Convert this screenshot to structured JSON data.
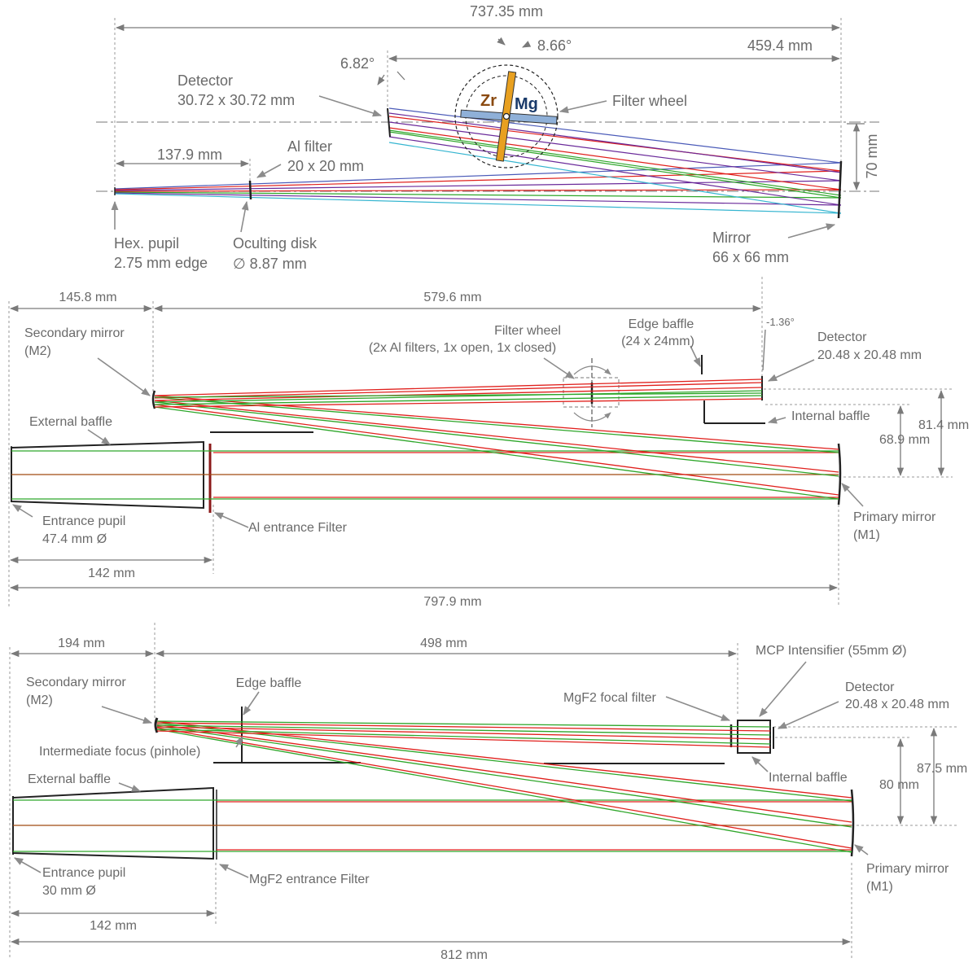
{
  "panel1": {
    "dimensions": {
      "total_length": "737.35 mm",
      "angle_filter": "8.66°",
      "detector_to_mirror": "459.4 mm",
      "angle_detector": "6.82°",
      "pupil_to_filter": "137.9 mm",
      "height": "70 mm"
    },
    "labels": {
      "detector_line1": "Detector",
      "detector_line2": "30.72 x 30.72 mm",
      "filter_wheel": "Filter wheel",
      "al_filter_line1": "Al filter",
      "al_filter_line2": "20 x 20 mm",
      "pupil_line1": "Hex. pupil",
      "pupil_line2": "2.75 mm edge",
      "disk_line1": "Oculting disk",
      "disk_line2": "∅ 8.87 mm",
      "mirror_line1": "Mirror",
      "mirror_line2": "66 x 66 mm",
      "zr": "Zr",
      "mg": "Mg"
    }
  },
  "panel2": {
    "dimensions": {
      "front": "145.8 mm",
      "m2_to_detector": "579.6 mm",
      "angle": "-1.36°",
      "height_outer": "81.4 mm",
      "height_inner": "68.9 mm",
      "filter_distance": "142 mm",
      "total_length": "797.9 mm"
    },
    "labels": {
      "secondary_line1": "Secondary mirror",
      "secondary_line2": "(M2)",
      "filter_wheel_line1": "Filter wheel",
      "filter_wheel_line2": "(2x Al filters, 1x open, 1x closed)",
      "edge_baffle_line1": "Edge baffle",
      "edge_baffle_line2": "(24 x 24mm)",
      "detector_line1": "Detector",
      "detector_line2": "20.48 x 20.48 mm",
      "external_baffle": "External baffle",
      "internal_baffle": "Internal baffle",
      "entrance_pupil_line1": "Entrance pupil",
      "entrance_pupil_line2": "47.4 mm Ø",
      "entrance_filter": "Al entrance Filter",
      "primary_line1": "Primary mirror",
      "primary_line2": "(M1)"
    }
  },
  "panel3": {
    "dimensions": {
      "front": "194 mm",
      "m2_to_detector": "498 mm",
      "height_outer": "87.5 mm",
      "height_inner": "80 mm",
      "filter_distance": "142 mm",
      "total_length": "812 mm"
    },
    "labels": {
      "secondary_line1": "Secondary mirror",
      "secondary_line2": "(M2)",
      "edge_baffle": "Edge baffle",
      "mcp": "MCP Intensifier (55mm Ø)",
      "detector_line1": "Detector",
      "detector_line2": "20.48 x 20.48 mm",
      "focal_filter": "MgF2 focal filter",
      "intermediate_focus": "Intermediate focus (pinhole)",
      "internal_baffle": "Internal baffle",
      "external_baffle": "External baffle",
      "entrance_pupil_line1": "Entrance pupil",
      "entrance_pupil_line2": "30 mm Ø",
      "entrance_filter": "MgF2 entrance Filter",
      "primary_line1": "Primary mirror",
      "primary_line2": "(M1)"
    }
  },
  "colors": {
    "ray_red": "#e0201c",
    "ray_green": "#2ea62a",
    "ray_purple": "#6a2a9a",
    "ray_blue": "#4a5ab8",
    "ray_cyan": "#35b5d0",
    "filter_orange": "#e8a020",
    "filter_blue": "#8fb0d8",
    "label_grey": "#6a6a6a",
    "zr_color": "#8a4a10",
    "mg_color": "#1a3a6a"
  }
}
